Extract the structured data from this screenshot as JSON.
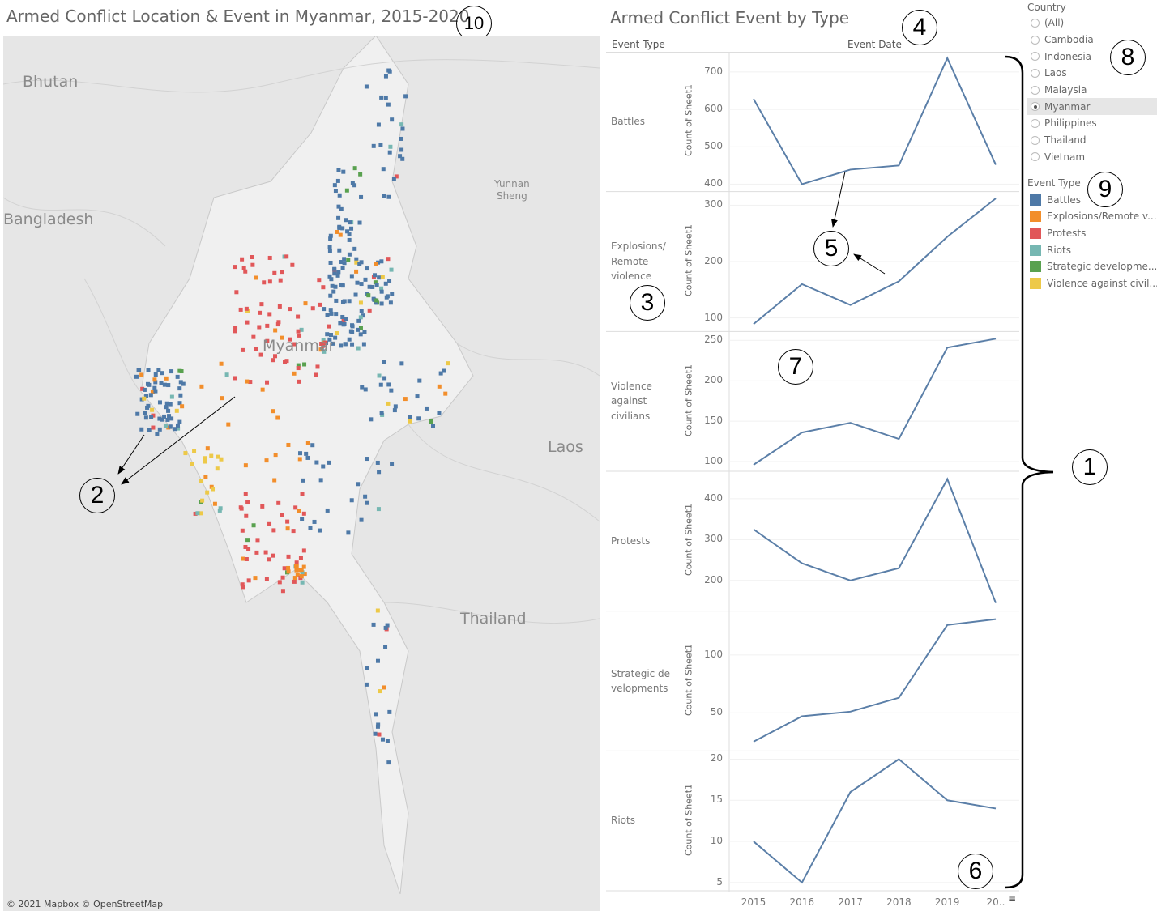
{
  "map": {
    "title": "Armed Conflict Location & Event in Myanmar, 2015-2020",
    "labels": {
      "bhutan": "Bhutan",
      "bangladesh": "Bangladesh",
      "yunnan": "Yunnan\nSheng",
      "myanmar": "Myanmar",
      "laos": "Laos",
      "thailand": "Thailand"
    },
    "attribution": "© 2021 Mapbox  © OpenStreetMap"
  },
  "chart": {
    "title": "Armed Conflict Event by Type",
    "row_header": "Event Type",
    "col_header": "Event Date",
    "y_axis_label": "Count of Sheet1",
    "x_tick_labels": [
      "2015",
      "2016",
      "2017",
      "2018",
      "2019",
      "20.."
    ],
    "line_color": "#5b7fa8"
  },
  "chart_data": {
    "type": "line",
    "title": "Armed Conflict Event by Type",
    "xlabel": "Event Date",
    "ylabel": "Count of Sheet1",
    "x": [
      2015,
      2016,
      2017,
      2018,
      2019,
      2020
    ],
    "series": [
      {
        "name": "Battles",
        "label": "Battles",
        "values": [
          628,
          400,
          439,
          450,
          737,
          452
        ],
        "ylim": [
          380,
          754
        ],
        "ticks": [
          400,
          500,
          600,
          700
        ]
      },
      {
        "name": "Explosions/Remote violence",
        "label": "Explosions/\nRemote\nviolence",
        "values": [
          89,
          160,
          123,
          165,
          244,
          312
        ],
        "ylim": [
          76,
          324
        ],
        "ticks": [
          100,
          200,
          300
        ]
      },
      {
        "name": "Violence against civilians",
        "label": "Violence\nagainst\ncivilians",
        "values": [
          96,
          136,
          148,
          128,
          241,
          252
        ],
        "ylim": [
          88,
          261
        ],
        "ticks": [
          100,
          150,
          200,
          250
        ]
      },
      {
        "name": "Protests",
        "label": "Protests",
        "values": [
          325,
          242,
          200,
          230,
          448,
          145
        ],
        "ylim": [
          125,
          467
        ],
        "ticks": [
          200,
          300,
          400
        ]
      },
      {
        "name": "Strategic developments",
        "label": "Strategic de\nvelopments",
        "values": [
          25,
          47,
          51,
          63,
          126,
          131
        ],
        "ylim": [
          17,
          138
        ],
        "ticks": [
          50,
          100
        ]
      },
      {
        "name": "Riots",
        "label": "Riots",
        "values": [
          10,
          5,
          16,
          20,
          15,
          14
        ],
        "ylim": [
          4,
          21
        ],
        "ticks": [
          5,
          10,
          15,
          20
        ]
      }
    ],
    "grid": true
  },
  "country_filter": {
    "title": "Country",
    "options": [
      "(All)",
      "Cambodia",
      "Indonesia",
      "Laos",
      "Malaysia",
      "Myanmar",
      "Philippines",
      "Thailand",
      "Vietnam"
    ],
    "selected": "Myanmar"
  },
  "legend": {
    "title": "Event Type",
    "items": [
      {
        "label": "Battles",
        "color": "#4e79a7"
      },
      {
        "label": "Explosions/Remote v...",
        "color": "#f28e2b"
      },
      {
        "label": "Protests",
        "color": "#e15759"
      },
      {
        "label": "Riots",
        "color": "#76b7b2"
      },
      {
        "label": "Strategic developme...",
        "color": "#59a14f"
      },
      {
        "label": "Violence against civil...",
        "color": "#edc948"
      }
    ]
  },
  "annotations": [
    "1",
    "2",
    "3",
    "4",
    "5",
    "6",
    "7",
    "8",
    "9",
    "10"
  ]
}
